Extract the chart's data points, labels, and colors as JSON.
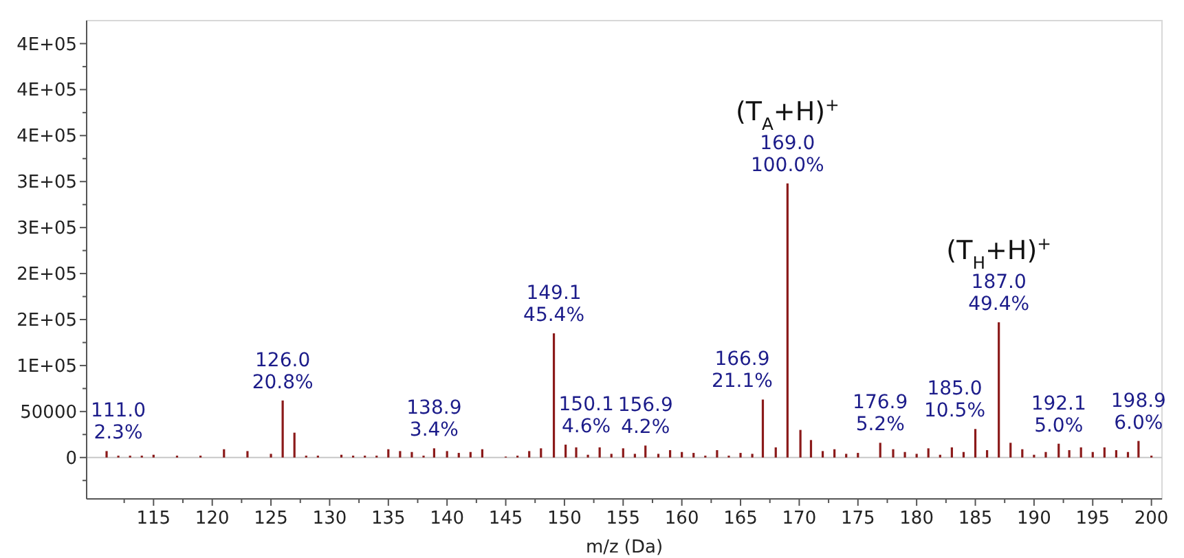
{
  "chart_data": {
    "type": "bar",
    "xlabel": "m/z (Da)",
    "x": [
      111.0,
      112,
      113,
      114,
      115,
      117,
      119,
      121,
      123,
      125,
      126.0,
      127,
      128,
      129,
      131,
      132,
      133,
      134,
      135,
      136,
      137,
      138,
      138.9,
      140,
      141,
      142,
      143,
      145,
      146,
      147,
      148,
      149.1,
      150.1,
      151,
      152,
      153,
      154,
      155,
      156,
      156.9,
      158,
      159,
      160,
      161,
      162,
      163,
      164,
      165,
      166,
      166.9,
      168,
      169.0,
      170.1,
      171,
      172,
      173,
      174,
      175,
      176.9,
      178,
      179,
      180,
      181,
      182,
      183,
      184,
      185.0,
      186,
      187.0,
      188,
      189,
      190,
      191,
      192.1,
      193,
      194,
      195,
      196,
      197,
      198,
      198.9,
      200
    ],
    "series": [
      {
        "color": "#8b1a1a",
        "values": [
          7000,
          2000,
          2000,
          2000,
          3000,
          2000,
          2000,
          9000,
          7000,
          4000,
          62000,
          27000,
          2000,
          2000,
          3000,
          2000,
          2000,
          2000,
          9000,
          7000,
          6000,
          2000,
          10000,
          7000,
          5000,
          6000,
          9000,
          1000,
          2000,
          7000,
          10000,
          135000,
          14000,
          11000,
          3000,
          11000,
          4000,
          10000,
          4000,
          13000,
          4000,
          8000,
          6000,
          5000,
          2000,
          8000,
          2000,
          5000,
          4000,
          63000,
          11000,
          298000,
          30000,
          19000,
          7000,
          9000,
          4000,
          5000,
          16000,
          9000,
          6000,
          4000,
          10000,
          3000,
          11000,
          6000,
          31000,
          8000,
          147000,
          16000,
          9000,
          3000,
          6000,
          15000,
          8000,
          11000,
          6000,
          11000,
          8000,
          6000,
          18000,
          2000
        ]
      }
    ],
    "xlim": [
      109.3,
      200.9
    ],
    "xticks": [
      115,
      120,
      125,
      130,
      135,
      140,
      145,
      150,
      155,
      160,
      165,
      170,
      175,
      180,
      185,
      190,
      195,
      200,
      {
        "value": 112.5,
        "label": null
      },
      {
        "value": 117.5,
        "label": null
      },
      {
        "value": 122.5,
        "label": null
      },
      {
        "value": 127.5,
        "label": null
      },
      {
        "value": 132.5,
        "label": null
      },
      {
        "value": 137.5,
        "label": null
      },
      {
        "value": 142.5,
        "label": null
      },
      {
        "value": 147.5,
        "label": null
      },
      {
        "value": 152.5,
        "label": null
      },
      {
        "value": 157.5,
        "label": null
      },
      {
        "value": 162.5,
        "label": null
      },
      {
        "value": 167.5,
        "label": null
      },
      {
        "value": 172.5,
        "label": null
      },
      {
        "value": 177.5,
        "label": null
      },
      {
        "value": 182.5,
        "label": null
      },
      {
        "value": 187.5,
        "label": null
      },
      {
        "value": 192.5,
        "label": null
      },
      {
        "value": 197.5,
        "label": null
      }
    ],
    "ylim": [
      -45000,
      475000
    ],
    "yticks": [
      0,
      50000,
      {
        "value": 100000,
        "label": "1E+05"
      },
      {
        "value": 150000,
        "label": "2E+05"
      },
      {
        "value": 200000,
        "label": "2E+05"
      },
      {
        "value": 250000,
        "label": "3E+05"
      },
      {
        "value": 300000,
        "label": "3E+05"
      },
      {
        "value": 350000,
        "label": "4E+05"
      },
      {
        "value": 400000,
        "label": "4E+05"
      },
      {
        "value": 450000,
        "label": "4E+05"
      },
      {
        "value": -25000,
        "label": null
      },
      {
        "value": 25000,
        "label": null
      },
      {
        "value": 75000,
        "label": null
      },
      {
        "value": 125000,
        "label": null
      },
      {
        "value": 175000,
        "label": null
      },
      {
        "value": 225000,
        "label": null
      },
      {
        "value": 275000,
        "label": null
      },
      {
        "value": 325000,
        "label": null
      },
      {
        "value": 375000,
        "label": null
      },
      {
        "value": 425000,
        "label": null
      }
    ],
    "ref_lines": [
      {
        "axis": "y",
        "value": 0,
        "color": "#c8c8c8"
      }
    ],
    "annotations": [
      {
        "text": "111.0\n2.3%",
        "x": 111.0,
        "y": 7000
      },
      {
        "text": "126.0\n20.8%",
        "x": 126.0,
        "y": 62000
      },
      {
        "text": "138.9\n3.4%",
        "x": 138.9,
        "y": 10000
      },
      {
        "text": "149.1\n45.4%",
        "x": 149.1,
        "y": 135000
      },
      {
        "text": "150.1\n4.6%",
        "x": 150.1,
        "y": 14000
      },
      {
        "text": "156.9\n4.2%",
        "x": 156.9,
        "y": 13000
      },
      {
        "text": "166.9\n21.1%",
        "x": 166.9,
        "y": 63000
      },
      {
        "text": "169.0\n100.0%",
        "x": 169.0,
        "y": 298000
      },
      {
        "text": "176.9\n5.2%",
        "x": 176.9,
        "y": 16000
      },
      {
        "text": "185.0\n10.5%",
        "x": 185.0,
        "y": 31000
      },
      {
        "text": "187.0\n49.4%",
        "x": 187.0,
        "y": 147000
      },
      {
        "text": "192.1\n5.0%",
        "x": 192.1,
        "y": 15000
      },
      {
        "text": "198.9\n6.0%",
        "x": 198.9,
        "y": 18000
      },
      {
        "text": "(T$_{A}$+H)$^{+}$",
        "x": 169.0,
        "y": 298000
      },
      {
        "text": "(T$_{H}$+H)$^{+}$",
        "x": 187.0,
        "y": 147000
      }
    ],
    "grid": false
  }
}
